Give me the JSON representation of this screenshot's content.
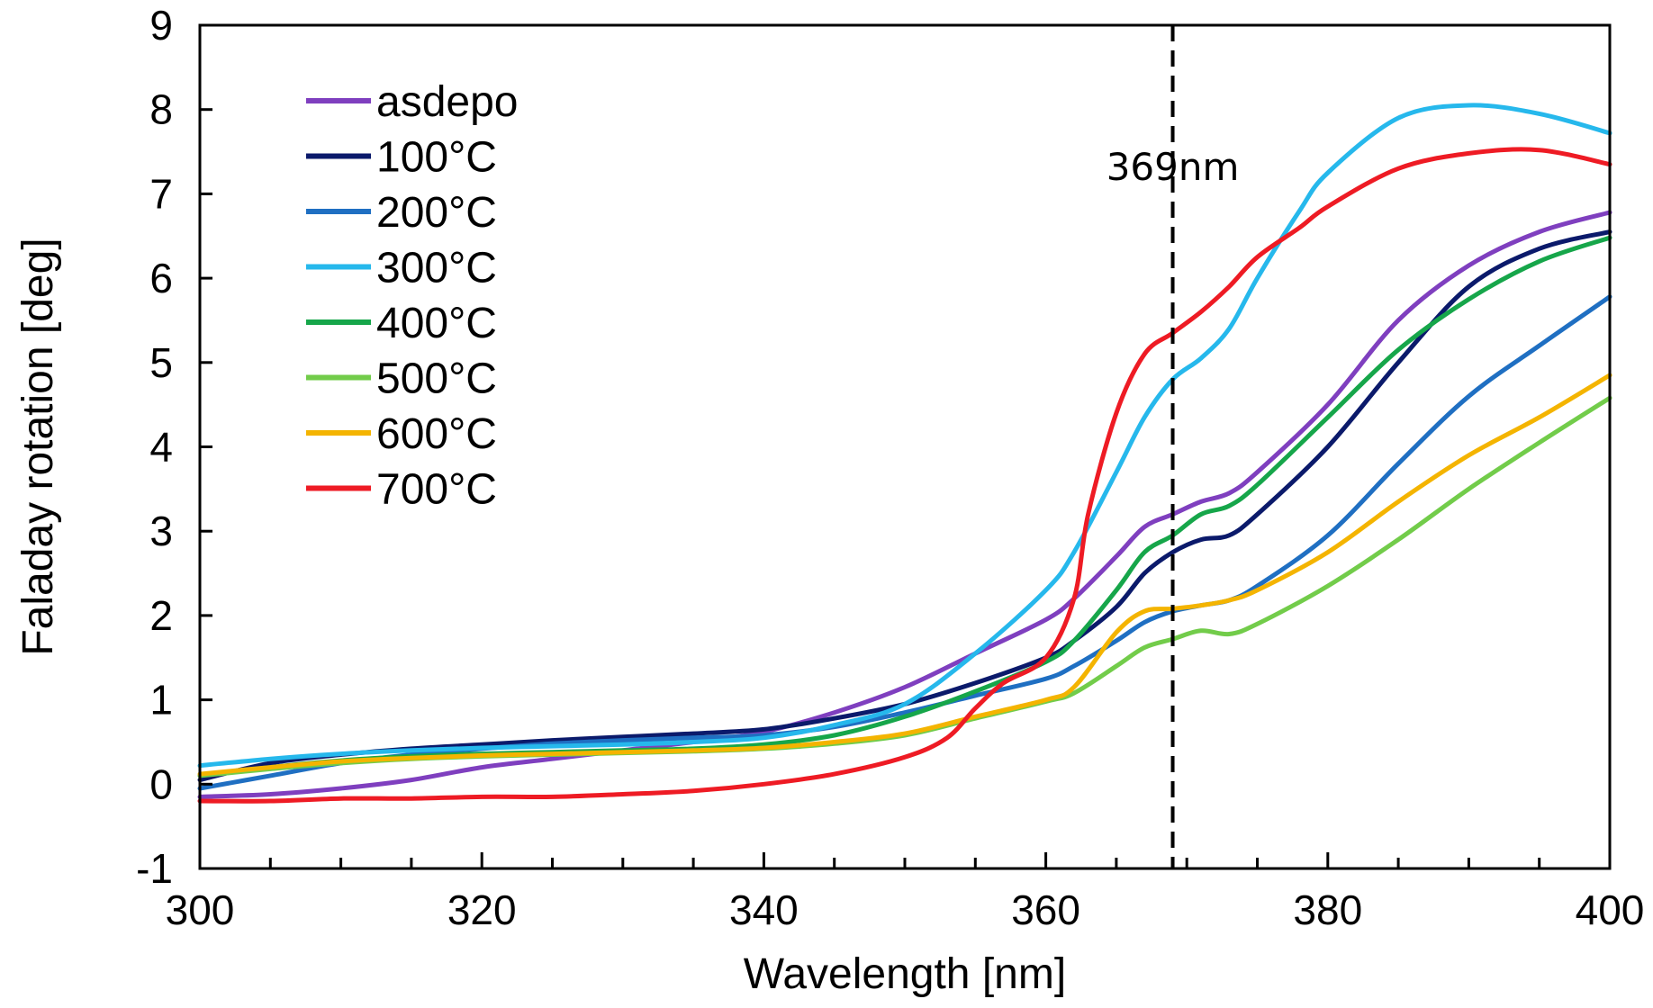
{
  "chart_data": {
    "type": "line",
    "title": "",
    "xlabel": "Wavelength [nm]",
    "ylabel": "Faladay rotation [deg]",
    "xlim": [
      300,
      400
    ],
    "ylim": [
      -1,
      9
    ],
    "xticks": [
      300,
      320,
      340,
      360,
      380,
      400
    ],
    "xtick_labels": [
      "300",
      "320",
      "340",
      "360",
      "380",
      "400"
    ],
    "yticks": [
      -1,
      0,
      1,
      2,
      3,
      4,
      5,
      6,
      7,
      8,
      9
    ],
    "ytick_labels": [
      "-1",
      "0",
      "1",
      "2",
      "3",
      "4",
      "5",
      "6",
      "7",
      "8",
      "9"
    ],
    "grid": false,
    "legend": "top-left",
    "annotation": {
      "label": "369nm",
      "x": 369,
      "style": "dashed vertical line"
    },
    "series": [
      {
        "name": "asdepo",
        "color": "#7f3fbf",
        "x": [
          300,
          305,
          310,
          315,
          320,
          325,
          330,
          335,
          340,
          345,
          350,
          355,
          360,
          362,
          365,
          367,
          369,
          371,
          373,
          375,
          380,
          385,
          390,
          395,
          400
        ],
        "y": [
          -0.15,
          -0.12,
          -0.05,
          0.05,
          0.2,
          0.3,
          0.4,
          0.5,
          0.62,
          0.85,
          1.15,
          1.55,
          1.95,
          2.2,
          2.7,
          3.05,
          3.2,
          3.35,
          3.45,
          3.7,
          4.5,
          5.5,
          6.15,
          6.55,
          6.78
        ]
      },
      {
        "name": "100°C",
        "color": "#0b1a6b",
        "x": [
          300,
          305,
          310,
          315,
          320,
          325,
          330,
          335,
          340,
          345,
          350,
          355,
          360,
          362,
          365,
          367,
          369,
          371,
          373,
          375,
          380,
          385,
          390,
          395,
          400
        ],
        "y": [
          0.05,
          0.25,
          0.35,
          0.42,
          0.47,
          0.52,
          0.56,
          0.6,
          0.65,
          0.78,
          0.95,
          1.2,
          1.5,
          1.7,
          2.1,
          2.5,
          2.75,
          2.9,
          2.95,
          3.2,
          4.0,
          5.0,
          5.9,
          6.35,
          6.55
        ]
      },
      {
        "name": "200°C",
        "color": "#1f6fc2",
        "x": [
          300,
          305,
          310,
          315,
          320,
          325,
          330,
          335,
          340,
          345,
          350,
          355,
          360,
          362,
          365,
          367,
          369,
          371,
          373,
          375,
          380,
          385,
          390,
          395,
          400
        ],
        "y": [
          -0.05,
          0.1,
          0.25,
          0.35,
          0.42,
          0.48,
          0.52,
          0.55,
          0.58,
          0.68,
          0.85,
          1.05,
          1.25,
          1.4,
          1.7,
          1.92,
          2.05,
          2.12,
          2.18,
          2.35,
          2.95,
          3.8,
          4.6,
          5.2,
          5.78
        ]
      },
      {
        "name": "300°C",
        "color": "#26b8ec",
        "x": [
          300,
          305,
          310,
          315,
          320,
          325,
          330,
          335,
          340,
          345,
          350,
          355,
          360,
          362,
          365,
          367,
          369,
          371,
          373,
          375,
          378,
          380,
          385,
          390,
          395,
          400
        ],
        "y": [
          0.22,
          0.3,
          0.36,
          0.4,
          0.43,
          0.45,
          0.47,
          0.5,
          0.55,
          0.7,
          0.95,
          1.55,
          2.3,
          2.75,
          3.7,
          4.35,
          4.8,
          5.05,
          5.4,
          6.0,
          6.8,
          7.25,
          7.9,
          8.05,
          7.95,
          7.72
        ]
      },
      {
        "name": "400°C",
        "color": "#16a64a",
        "x": [
          300,
          305,
          310,
          315,
          320,
          325,
          330,
          335,
          340,
          345,
          350,
          355,
          360,
          362,
          365,
          367,
          369,
          371,
          373,
          375,
          380,
          385,
          390,
          395,
          400
        ],
        "y": [
          0.1,
          0.2,
          0.28,
          0.33,
          0.36,
          0.38,
          0.4,
          0.42,
          0.47,
          0.58,
          0.8,
          1.1,
          1.45,
          1.7,
          2.3,
          2.75,
          2.95,
          3.2,
          3.3,
          3.55,
          4.35,
          5.15,
          5.75,
          6.2,
          6.48
        ]
      },
      {
        "name": "500°C",
        "color": "#72cc4a",
        "x": [
          300,
          305,
          310,
          315,
          320,
          325,
          330,
          335,
          340,
          345,
          350,
          355,
          360,
          362,
          365,
          367,
          369,
          371,
          373,
          375,
          380,
          385,
          390,
          395,
          400
        ],
        "y": [
          0.1,
          0.18,
          0.25,
          0.3,
          0.33,
          0.35,
          0.37,
          0.39,
          0.42,
          0.48,
          0.58,
          0.78,
          0.98,
          1.08,
          1.4,
          1.62,
          1.72,
          1.82,
          1.78,
          1.9,
          2.35,
          2.9,
          3.5,
          4.05,
          4.58
        ]
      },
      {
        "name": "600°C",
        "color": "#f4b400",
        "x": [
          300,
          305,
          310,
          315,
          320,
          325,
          330,
          335,
          340,
          345,
          350,
          355,
          360,
          362,
          365,
          367,
          369,
          371,
          373,
          375,
          380,
          385,
          390,
          395,
          400
        ],
        "y": [
          0.12,
          0.2,
          0.27,
          0.31,
          0.34,
          0.36,
          0.38,
          0.4,
          0.43,
          0.5,
          0.6,
          0.8,
          1.0,
          1.15,
          1.8,
          2.05,
          2.08,
          2.12,
          2.18,
          2.3,
          2.75,
          3.35,
          3.9,
          4.35,
          4.85
        ]
      },
      {
        "name": "700°C",
        "color": "#ee1b24",
        "x": [
          300,
          305,
          310,
          315,
          320,
          325,
          330,
          335,
          340,
          345,
          350,
          353,
          355,
          357,
          360,
          362,
          363,
          365,
          367,
          369,
          371,
          373,
          375,
          378,
          380,
          385,
          390,
          395,
          400
        ],
        "y": [
          -0.2,
          -0.2,
          -0.17,
          -0.17,
          -0.15,
          -0.15,
          -0.12,
          -0.08,
          0.0,
          0.12,
          0.32,
          0.55,
          0.9,
          1.2,
          1.5,
          2.2,
          3.2,
          4.4,
          5.1,
          5.35,
          5.6,
          5.9,
          6.25,
          6.6,
          6.85,
          7.3,
          7.48,
          7.52,
          7.35
        ]
      }
    ]
  }
}
